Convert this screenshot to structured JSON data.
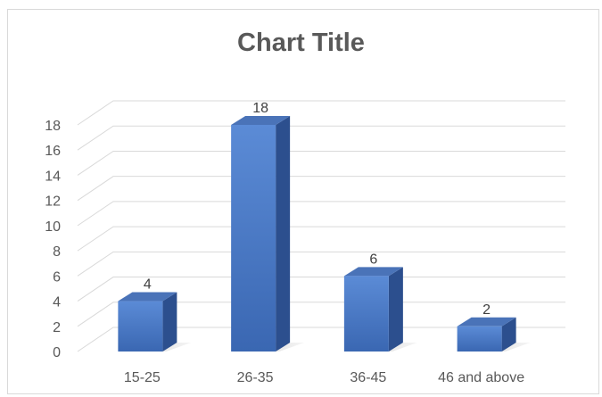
{
  "chart_data": {
    "type": "bar",
    "title": "Chart Title",
    "categories": [
      "15-25",
      "26-35",
      "36-45",
      "46 and above"
    ],
    "values": [
      4,
      18,
      6,
      2
    ],
    "ylim": [
      0,
      18
    ],
    "yticks": [
      0,
      2,
      4,
      6,
      8,
      10,
      12,
      14,
      16,
      18
    ],
    "grid": true,
    "style": "3d-column",
    "colors": {
      "bar_front_top": "#5b8bd6",
      "bar_front_bottom": "#3a67b2",
      "bar_side": "#2c4f8e",
      "bar_top": "#4a73b8",
      "gridline": "#d9d9d9"
    }
  }
}
